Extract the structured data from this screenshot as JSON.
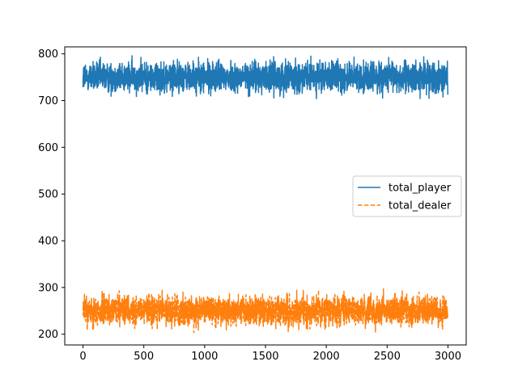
{
  "chart_data": {
    "type": "line",
    "title": "",
    "xlabel": "",
    "ylabel": "",
    "xlim": [
      -150,
      3150
    ],
    "ylim": [
      177,
      815
    ],
    "xticks": [
      0,
      500,
      1000,
      1500,
      2000,
      2500,
      3000
    ],
    "yticks": [
      200,
      300,
      400,
      500,
      600,
      700,
      800
    ],
    "grid": false,
    "legend_position": "center-right",
    "n_points": 3000,
    "series": [
      {
        "name": "total_player",
        "color": "#1f77b4",
        "linestyle": "solid",
        "mean": 750,
        "typical_range": [
          720,
          780
        ],
        "min": 703,
        "max": 796
      },
      {
        "name": "total_dealer",
        "color": "#ff7f0e",
        "linestyle": "dashed",
        "mean": 250,
        "typical_range": [
          220,
          280
        ],
        "min": 203,
        "max": 297
      }
    ]
  }
}
